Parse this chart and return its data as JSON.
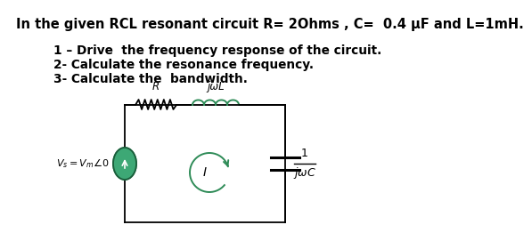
{
  "title_line": "In the given RCL resonant circuit R= 2Ohms , C=  0.4 μF and L=1mH.",
  "items": [
    "1 – Drive  the frequency response of the circuit.",
    "2- Calculate the resonance frequency.",
    "3- Calculate the  bandwidth."
  ],
  "bg_color": "#ffffff",
  "text_color": "#000000",
  "title_fontsize": 10.5,
  "item_fontsize": 9.8,
  "circuit": {
    "R_label": "R",
    "L_label": "jωL",
    "I_label": "I",
    "Vs_label": "V_s = V_m •0"
  }
}
